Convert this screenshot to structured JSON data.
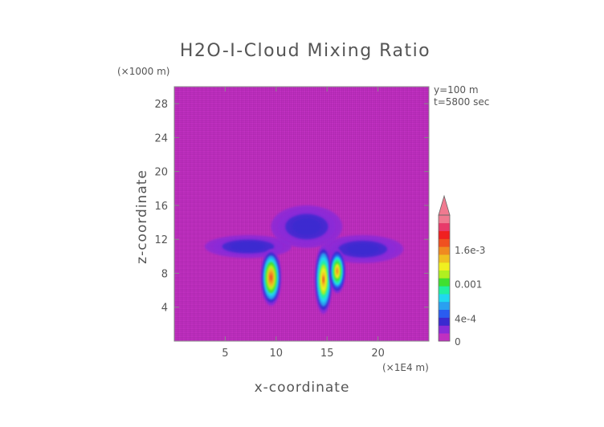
{
  "chart_data": {
    "type": "heatmap",
    "title": "H2O-I-Cloud Mixing Ratio",
    "xlabel": "x-coordinate",
    "ylabel": "z-coordinate",
    "x_unit": "(×1E4 m)",
    "y_unit": "(×1000 m)",
    "annotations": [
      "y=100 m",
      "t=5800 sec"
    ],
    "xlim": [
      0,
      25
    ],
    "ylim": [
      0,
      30
    ],
    "x_ticks": [
      5,
      10,
      15,
      20
    ],
    "y_ticks": [
      4,
      8,
      12,
      16,
      20,
      24,
      28
    ],
    "colorbar": {
      "range": [
        0,
        0.0022
      ],
      "ticks": [
        {
          "value": 0,
          "label": "0"
        },
        {
          "value": 0.0004,
          "label": "4e-4"
        },
        {
          "value": 0.001,
          "label": "0.001"
        },
        {
          "value": 0.0016,
          "label": "1.6e-3"
        }
      ],
      "extend": "max",
      "colors": [
        "#c030c0",
        "#8a2bd8",
        "#3a2ad0",
        "#2a5cf0",
        "#2aa0f0",
        "#20d8f0",
        "#20f0a0",
        "#40e030",
        "#b0f020",
        "#f0f020",
        "#f0c020",
        "#f08a20",
        "#f05020",
        "#f02020",
        "#e83a6a",
        "#f07a90"
      ]
    },
    "background_color": "#c030c0",
    "features": [
      {
        "shape": "anvil-outflow",
        "x": [
          3.0,
          22.5
        ],
        "z": [
          9.5,
          16.0
        ],
        "peak": 0.0003
      },
      {
        "shape": "core",
        "x": [
          8.5,
          10.5
        ],
        "z": [
          4.0,
          11.0
        ],
        "peak": 0.0019
      },
      {
        "shape": "core",
        "x": [
          13.8,
          15.5
        ],
        "z": [
          3.0,
          11.5
        ],
        "peak": 0.0018
      },
      {
        "shape": "core",
        "x": [
          15.2,
          16.8
        ],
        "z": [
          5.5,
          11.0
        ],
        "peak": 0.0017
      }
    ]
  }
}
